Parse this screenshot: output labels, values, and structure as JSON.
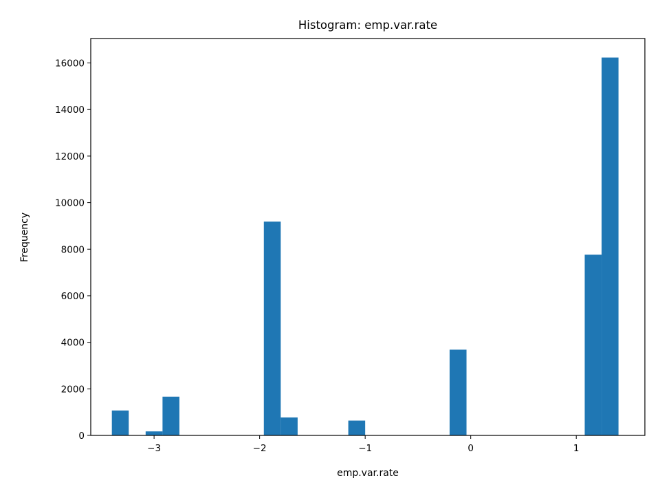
{
  "chart_data": {
    "type": "bar",
    "subtype": "histogram",
    "title": "Histogram: emp.var.rate",
    "xlabel": "emp.var.rate",
    "ylabel": "Frequency",
    "xlim": [
      -3.6,
      1.65
    ],
    "ylim": [
      0,
      17050
    ],
    "x_ticks": [
      {
        "value": -3,
        "label": "−3"
      },
      {
        "value": -2,
        "label": "−2"
      },
      {
        "value": -1,
        "label": "−1"
      },
      {
        "value": 0,
        "label": "0"
      },
      {
        "value": 1,
        "label": "1"
      }
    ],
    "y_ticks": [
      {
        "value": 0,
        "label": "0"
      },
      {
        "value": 2000,
        "label": "2000"
      },
      {
        "value": 4000,
        "label": "4000"
      },
      {
        "value": 6000,
        "label": "6000"
      },
      {
        "value": 8000,
        "label": "8000"
      },
      {
        "value": 10000,
        "label": "10000"
      },
      {
        "value": 12000,
        "label": "12000"
      },
      {
        "value": 14000,
        "label": "14000"
      },
      {
        "value": 16000,
        "label": "16000"
      }
    ],
    "bins": [
      {
        "x0": -3.4,
        "x1": -3.24,
        "value": 1071
      },
      {
        "x0": -3.24,
        "x1": -3.08,
        "value": 0
      },
      {
        "x0": -3.08,
        "x1": -2.92,
        "value": 172
      },
      {
        "x0": -2.92,
        "x1": -2.76,
        "value": 1663
      },
      {
        "x0": -2.76,
        "x1": -2.6,
        "value": 0
      },
      {
        "x0": -2.6,
        "x1": -2.44,
        "value": 0
      },
      {
        "x0": -2.44,
        "x1": -2.28,
        "value": 0
      },
      {
        "x0": -2.28,
        "x1": -2.12,
        "value": 0
      },
      {
        "x0": -2.12,
        "x1": -1.96,
        "value": 0
      },
      {
        "x0": -1.96,
        "x1": -1.8,
        "value": 9184
      },
      {
        "x0": -1.8,
        "x1": -1.64,
        "value": 773
      },
      {
        "x0": -1.64,
        "x1": -1.48,
        "value": 0
      },
      {
        "x0": -1.48,
        "x1": -1.32,
        "value": 0
      },
      {
        "x0": -1.32,
        "x1": -1.16,
        "value": 0
      },
      {
        "x0": -1.16,
        "x1": -1.0,
        "value": 635
      },
      {
        "x0": -1.0,
        "x1": -0.84,
        "value": 0
      },
      {
        "x0": -0.84,
        "x1": -0.68,
        "value": 0
      },
      {
        "x0": -0.68,
        "x1": -0.52,
        "value": 0
      },
      {
        "x0": -0.52,
        "x1": -0.36,
        "value": 0
      },
      {
        "x0": -0.36,
        "x1": -0.2,
        "value": 0
      },
      {
        "x0": -0.2,
        "x1": -0.04,
        "value": 3683
      },
      {
        "x0": -0.04,
        "x1": 0.12,
        "value": 0
      },
      {
        "x0": 0.12,
        "x1": 0.28,
        "value": 0
      },
      {
        "x0": 0.28,
        "x1": 0.44,
        "value": 0
      },
      {
        "x0": 0.44,
        "x1": 0.6,
        "value": 0
      },
      {
        "x0": 0.6,
        "x1": 0.76,
        "value": 0
      },
      {
        "x0": 0.76,
        "x1": 0.92,
        "value": 0
      },
      {
        "x0": 0.92,
        "x1": 1.08,
        "value": 0
      },
      {
        "x0": 1.08,
        "x1": 1.24,
        "value": 7763
      },
      {
        "x0": 1.24,
        "x1": 1.4,
        "value": 16234
      }
    ],
    "grid": false,
    "legend": "none",
    "colors": {
      "bar": "#1f77b4",
      "axis": "#000000",
      "background": "#ffffff"
    }
  }
}
